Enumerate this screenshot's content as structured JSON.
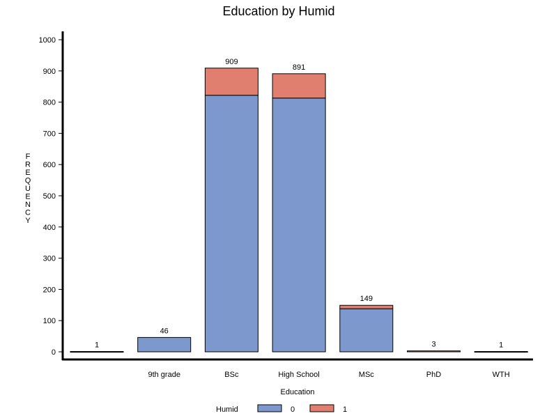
{
  "chart_data": {
    "type": "bar",
    "stacked": true,
    "title": "Education by Humid",
    "xlabel": "Education",
    "ylabel": "FREQUENCY",
    "ylim": [
      0,
      1000
    ],
    "yticks": [
      0,
      100,
      200,
      300,
      400,
      500,
      600,
      700,
      800,
      900,
      1000
    ],
    "categories": [
      "",
      "9th grade",
      "BSc",
      "High School",
      "MSc",
      "PhD",
      "WTH"
    ],
    "totals": [
      1,
      46,
      909,
      891,
      149,
      3,
      1
    ],
    "series": [
      {
        "name": "0",
        "color": "#7d98cc",
        "values": [
          1,
          46,
          822,
          813,
          138,
          0,
          1
        ]
      },
      {
        "name": "1",
        "color": "#e07f6f",
        "values": [
          0,
          0,
          87,
          78,
          11,
          3,
          0
        ]
      }
    ],
    "legend": {
      "title": "Humid",
      "position": "bottom"
    },
    "grid": false
  }
}
